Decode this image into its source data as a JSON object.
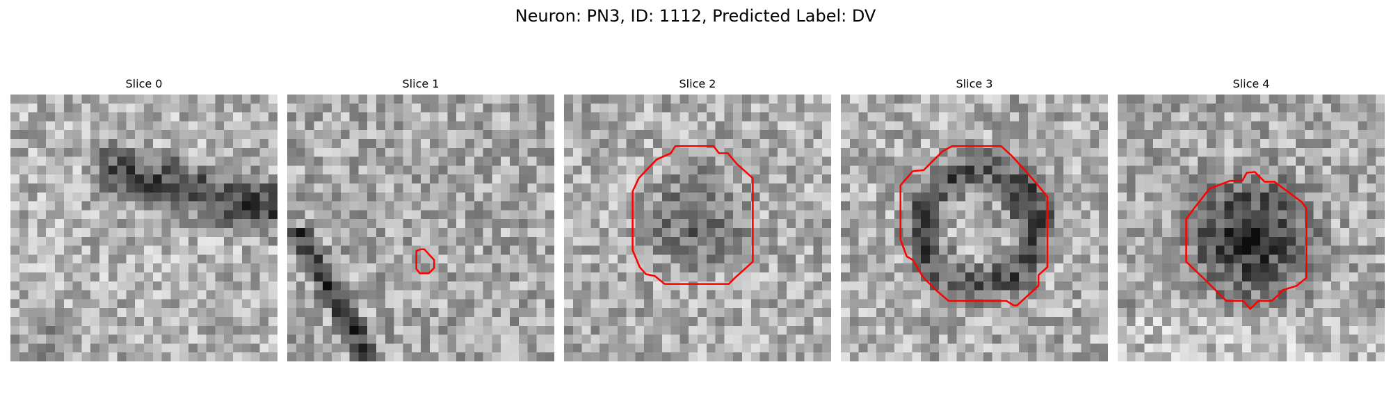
{
  "title": "Neuron: PN3, ID: 1112, Predicted Label: DV",
  "colors": {
    "contour": "#ff0000",
    "background": "#ffffff"
  },
  "panels": [
    {
      "title": "Slice 0",
      "grid": 30,
      "seed": 11,
      "has_contour": false
    },
    {
      "title": "Slice 1",
      "grid": 30,
      "seed": 23,
      "has_contour": true
    },
    {
      "title": "Slice 2",
      "grid": 30,
      "seed": 37,
      "has_contour": true
    },
    {
      "title": "Slice 3",
      "grid": 30,
      "seed": 41,
      "has_contour": true
    },
    {
      "title": "Slice 4",
      "grid": 30,
      "seed": 53,
      "has_contour": true
    }
  ]
}
